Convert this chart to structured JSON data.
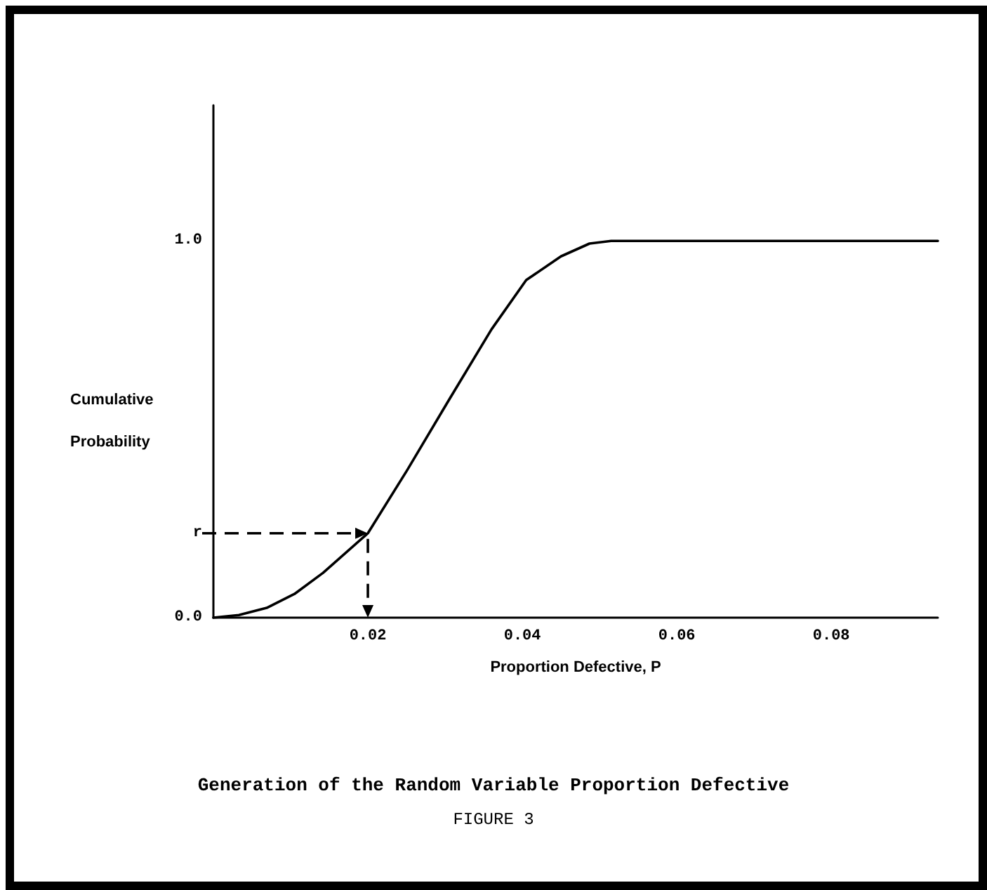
{
  "chart_data": {
    "type": "line",
    "title": "Generation of the Random Variable Proportion Defective",
    "subtitle": "FIGURE 3",
    "xlabel": "Proportion Defective, P",
    "ylabel": "Cumulative Probability",
    "xlim": [
      0,
      0.0938
    ],
    "xticks": [
      0.02,
      0.04,
      0.06,
      0.08
    ],
    "ylim": [
      0,
      1.36
    ],
    "yticks": [
      {
        "value": 0,
        "label": "0.0"
      },
      {
        "value": 0.224,
        "label": "r"
      },
      {
        "value": 1,
        "label": "1.0"
      }
    ],
    "grid": false,
    "marker": "none",
    "series": [
      {
        "color": "#000000",
        "line_style": "solid",
        "x": [
          0,
          0.0033,
          0.0069,
          0.0105,
          0.0142,
          0.02,
          0.0251,
          0.0305,
          0.036,
          0.0405,
          0.045,
          0.0487,
          0.0515,
          0.0938
        ],
        "values": [
          0,
          0.007,
          0.026,
          0.063,
          0.119,
          0.224,
          0.392,
          0.578,
          0.765,
          0.896,
          0.959,
          0.993,
          1,
          1
        ]
      }
    ]
  }
}
